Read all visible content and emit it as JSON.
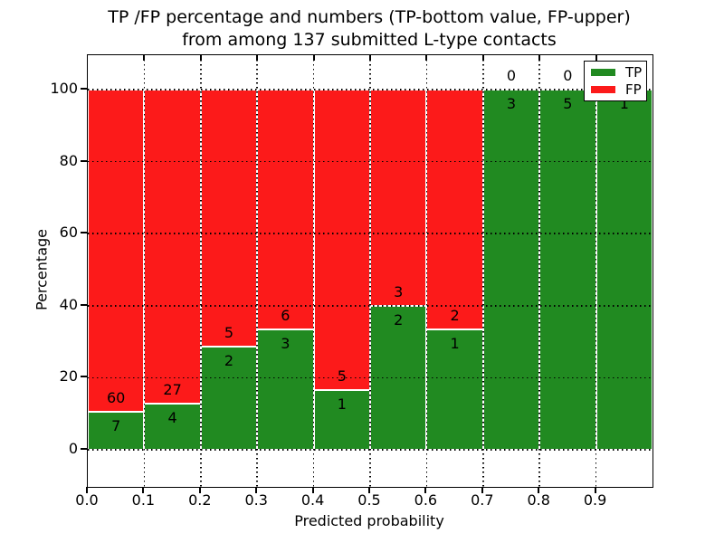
{
  "title": {
    "line1": "TP /FP percentage and numbers (TP-bottom value, FP-upper)",
    "line2": "from among 137 submitted L-type contacts"
  },
  "axes": {
    "xlabel": "Predicted probability",
    "ylabel": "Percentage",
    "x_tick_labels": [
      "0.0",
      "0.1",
      "0.2",
      "0.3",
      "0.4",
      "0.5",
      "0.6",
      "0.7",
      "0.8",
      "0.9"
    ],
    "y_tick_labels": [
      "100",
      "80",
      "60",
      "40",
      "20",
      "0"
    ]
  },
  "legend": [
    {
      "label": "TP",
      "color": "#218a21"
    },
    {
      "label": "FP",
      "color": "#fc1a1a"
    }
  ],
  "chart_data": {
    "type": "bar",
    "subtype": "stacked-percentage-histogram",
    "title": "TP /FP percentage and numbers (TP-bottom value, FP-upper) from among 137 submitted L-type contacts",
    "xlabel": "Predicted probability",
    "ylabel": "Percentage",
    "bin_width": 0.1,
    "bin_starts": [
      0.0,
      0.1,
      0.2,
      0.3,
      0.4,
      0.5,
      0.6,
      0.7,
      0.8,
      0.9
    ],
    "categories": [
      "0.0-0.1",
      "0.1-0.2",
      "0.2-0.3",
      "0.3-0.4",
      "0.4-0.5",
      "0.5-0.6",
      "0.6-0.7",
      "0.7-0.8",
      "0.8-0.9",
      "0.9-1.0"
    ],
    "series": [
      {
        "name": "TP",
        "color": "#218a21",
        "values": [
          7,
          4,
          2,
          3,
          1,
          2,
          1,
          3,
          5,
          1
        ]
      },
      {
        "name": "FP",
        "color": "#fc1a1a",
        "values": [
          60,
          27,
          5,
          6,
          5,
          3,
          2,
          0,
          0,
          0
        ]
      }
    ],
    "tp_percent": [
      10.45,
      12.9,
      28.57,
      33.33,
      16.67,
      40.0,
      33.33,
      100.0,
      100.0,
      100.0
    ],
    "total_contacts": 137,
    "xlim": [
      0.0,
      1.0
    ],
    "y_gridline_values": [
      0,
      20,
      40,
      60,
      80,
      100
    ],
    "grid": true,
    "grid_style": "dotted",
    "legend_position": "upper right",
    "bar_edge_color": "#ffffff"
  }
}
